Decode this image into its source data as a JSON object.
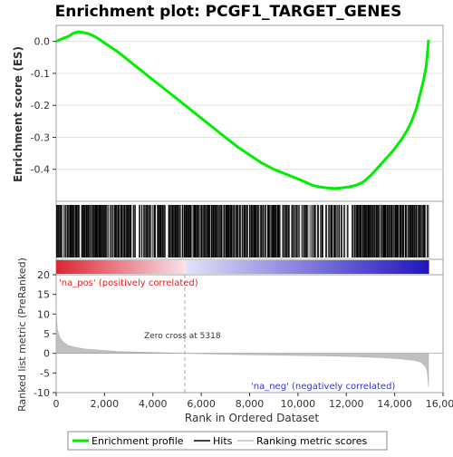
{
  "chart_data": {
    "type": "line",
    "title": "Enrichment plot: PCGF1_TARGET_GENES",
    "xlabel": "Rank in Ordered Dataset",
    "top_panel": {
      "ylabel": "Enrichment score (ES)",
      "ylim": [
        -0.5,
        0.05
      ],
      "yticks": [
        0.0,
        -0.1,
        -0.2,
        -0.3,
        -0.4
      ],
      "ytick_labels": [
        "0.0",
        "-0.1",
        "-0.2",
        "-0.3",
        "-0.4"
      ],
      "series": [
        {
          "name": "Enrichment profile",
          "color": "#00ee00",
          "x": [
            0,
            150,
            300,
            500,
            700,
            900,
            1100,
            1300,
            1600,
            2000,
            2500,
            3000,
            3500,
            4000,
            4500,
            5000,
            5500,
            6000,
            6500,
            7000,
            7500,
            8000,
            8500,
            9000,
            9500,
            10000,
            10300,
            10600,
            10900,
            11200,
            11500,
            11800,
            12100,
            12400,
            12700,
            13000,
            13300,
            13600,
            13900,
            14100,
            14300,
            14500,
            14700,
            14900,
            15000,
            15100,
            15200,
            15300,
            15350,
            15400
          ],
          "y": [
            0.0,
            0.005,
            0.01,
            0.015,
            0.025,
            0.03,
            0.028,
            0.025,
            0.015,
            -0.005,
            -0.03,
            -0.06,
            -0.09,
            -0.12,
            -0.15,
            -0.18,
            -0.21,
            -0.24,
            -0.27,
            -0.3,
            -0.33,
            -0.355,
            -0.38,
            -0.4,
            -0.415,
            -0.43,
            -0.44,
            -0.45,
            -0.455,
            -0.458,
            -0.46,
            -0.458,
            -0.455,
            -0.45,
            -0.44,
            -0.42,
            -0.395,
            -0.37,
            -0.345,
            -0.325,
            -0.305,
            -0.28,
            -0.25,
            -0.21,
            -0.18,
            -0.15,
            -0.12,
            -0.08,
            -0.04,
            0.005
          ]
        }
      ]
    },
    "hits_panel": {
      "label": "Hits",
      "color": "#000000",
      "segments": [
        {
          "from": 0,
          "to": 3100,
          "density": 0.85
        },
        {
          "from": 3100,
          "to": 3500,
          "density": 0.3
        },
        {
          "from": 3500,
          "to": 5300,
          "density": 0.7
        },
        {
          "from": 5300,
          "to": 9200,
          "density": 0.8
        },
        {
          "from": 9200,
          "to": 10000,
          "density": 0.5
        },
        {
          "from": 10000,
          "to": 11900,
          "density": 0.6
        },
        {
          "from": 11900,
          "to": 12300,
          "density": 0.35
        },
        {
          "from": 12300,
          "to": 15400,
          "density": 0.9
        }
      ]
    },
    "ranking_panel": {
      "ylabel": "Ranked list metric (PreRanked)",
      "ylim": [
        -10,
        20
      ],
      "yticks": [
        20,
        15,
        10,
        5,
        0,
        -5,
        -10
      ],
      "ytick_labels": [
        "20",
        "15",
        "10",
        "5",
        "0",
        "-5",
        "-10"
      ],
      "color": "#c0c0c0",
      "name": "Ranking metric scores",
      "x": [
        0,
        50,
        150,
        300,
        500,
        800,
        1200,
        1800,
        2500,
        3500,
        4500,
        5318,
        6500,
        8000,
        9500,
        11000,
        12500,
        13500,
        14200,
        14800,
        15100,
        15250,
        15350,
        15400
      ],
      "y": [
        11,
        6,
        4,
        2.8,
        2,
        1.5,
        1.1,
        0.8,
        0.5,
        0.3,
        0.15,
        0,
        -0.2,
        -0.35,
        -0.5,
        -0.65,
        -0.85,
        -1.1,
        -1.4,
        -1.8,
        -2.3,
        -3.2,
        -4.5,
        -8.5
      ],
      "zero_cross_label": "Zero cross at 5318",
      "zero_cross_x": 5318,
      "pos_label": "'na_pos' (positively correlated)",
      "neg_label": "'na_neg' (negatively correlated)",
      "pos_color": "#dd2222",
      "neg_color": "#3333cc"
    },
    "xlim": [
      0,
      16000
    ],
    "xticks": [
      0,
      2000,
      4000,
      6000,
      8000,
      10000,
      12000,
      14000,
      16000
    ],
    "xtick_labels": [
      "0",
      "2,000",
      "4,000",
      "6,000",
      "8,000",
      "10,000",
      "12,000",
      "14,000",
      "16,000"
    ],
    "dataset_size": 15400,
    "legend": {
      "placement": "bottom",
      "entries": [
        {
          "label": "Enrichment profile",
          "color": "#00ee00"
        },
        {
          "label": "Hits",
          "color": "#000000"
        },
        {
          "label": "Ranking metric scores",
          "color": "#c0c0c0"
        }
      ]
    }
  }
}
